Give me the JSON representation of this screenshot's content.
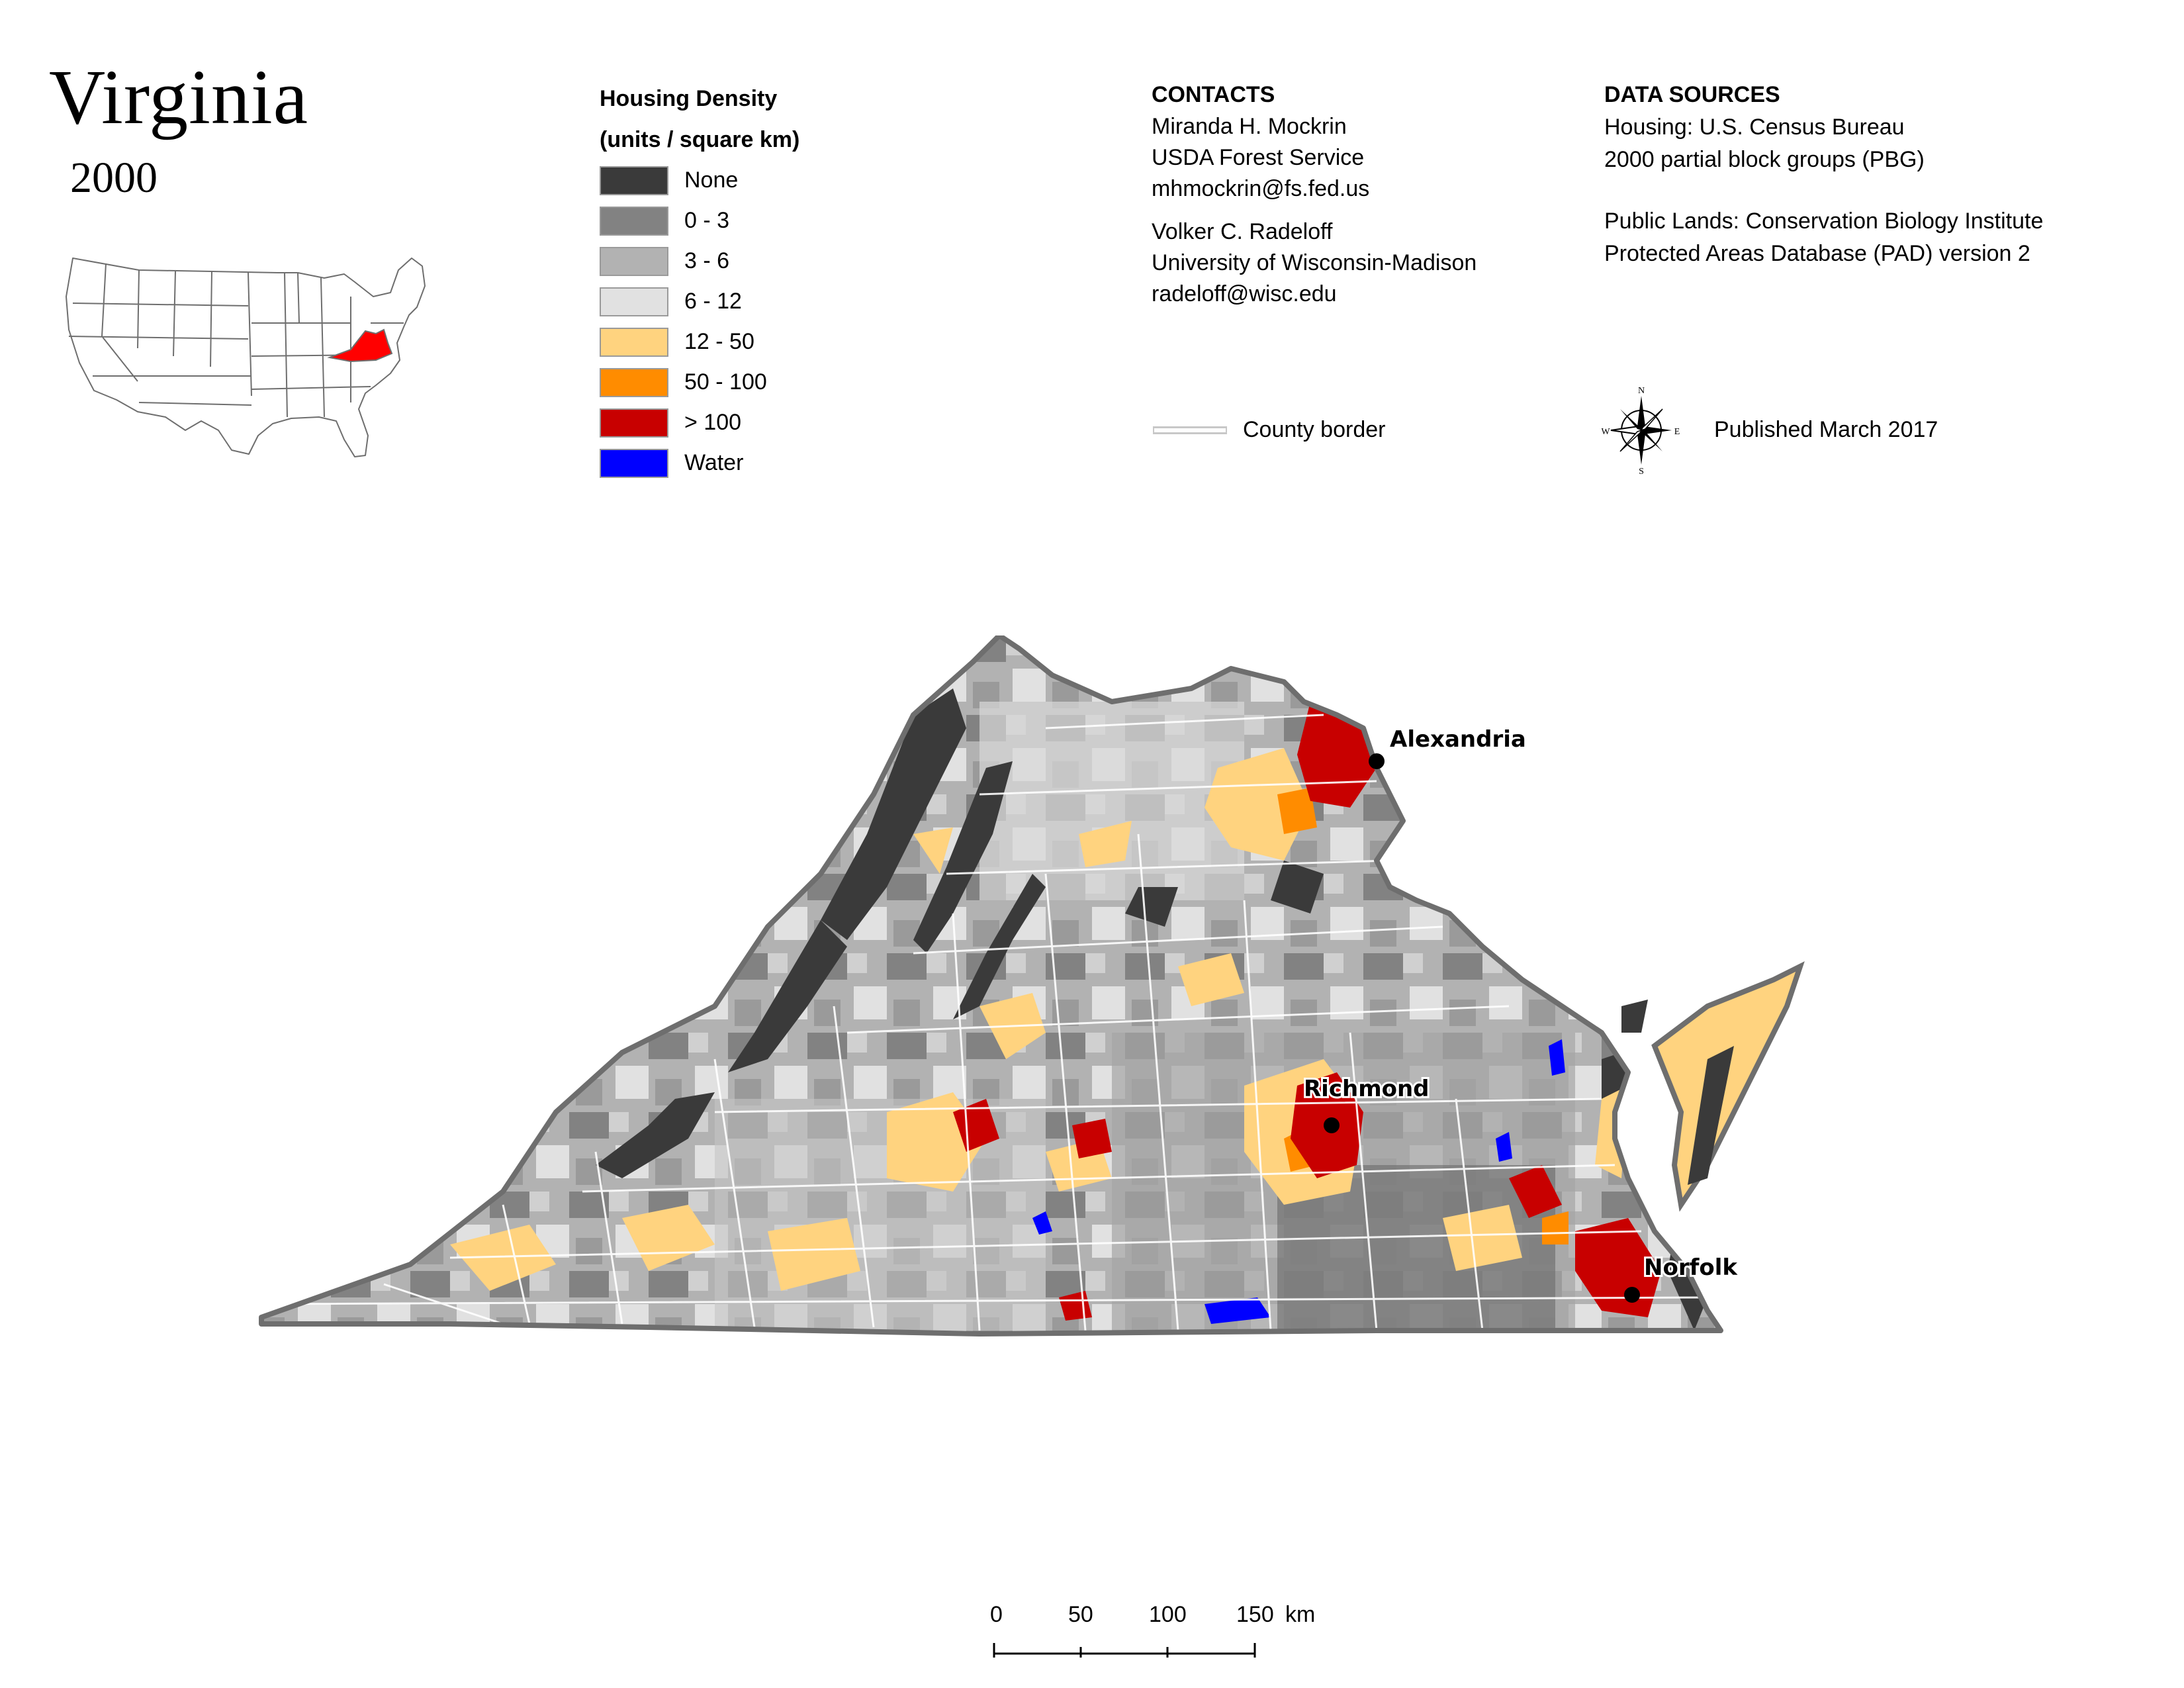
{
  "title": "Virginia",
  "year": "2000",
  "legend": {
    "heading_line1": "Housing Density",
    "heading_line2": "(units / square km)",
    "items": [
      {
        "label": "None",
        "color": "#3a3a3a"
      },
      {
        "label": "0 - 3",
        "color": "#828282"
      },
      {
        "label": "3 - 6",
        "color": "#b2b2b2"
      },
      {
        "label": "6 - 12",
        "color": "#e1e1e1"
      },
      {
        "label": "12 - 50",
        "color": "#ffd37f"
      },
      {
        "label": "50 - 100",
        "color": "#ff8c00"
      },
      {
        "label": "> 100",
        "color": "#c80000"
      },
      {
        "label": "Water",
        "color": "#0000ff"
      }
    ]
  },
  "contacts": {
    "heading": "CONTACTS",
    "person1": {
      "name": "Miranda H. Mockrin",
      "org": "USDA Forest Service",
      "email": "mhmockrin@fs.fed.us"
    },
    "person2": {
      "name": "Volker C. Radeloff",
      "org": "University of Wisconsin-Madison",
      "email": "radeloff@wisc.edu"
    }
  },
  "county_border_label": "County border",
  "data_sources": {
    "heading": "DATA SOURCES",
    "housing_line1": "Housing: U.S. Census Bureau",
    "housing_line2": "2000 partial block groups (PBG)",
    "public_line1": "Public Lands: Conservation Biology Institute",
    "public_line2": "Protected Areas Database (PAD) version 2"
  },
  "compass": {
    "n": "N",
    "s": "S",
    "e": "E",
    "w": "W"
  },
  "published": "Published March 2017",
  "cities": [
    "Alexandria",
    "Richmond",
    "Norfolk"
  ],
  "scale": {
    "ticks": [
      "0",
      "50",
      "100",
      "150"
    ],
    "unit": "km"
  },
  "inset_highlight_color": "#ff0000"
}
